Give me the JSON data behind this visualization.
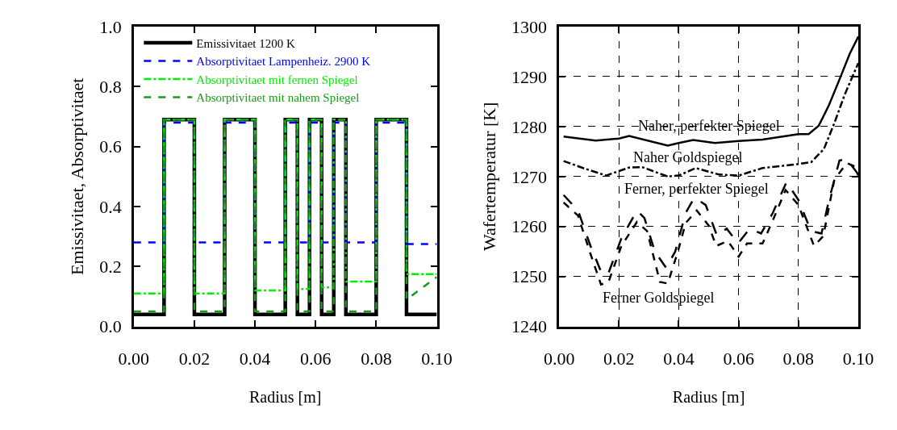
{
  "chart_data": [
    {
      "type": "step",
      "xlabel": "Radius [m]",
      "ylabel": "Emissivitaet, Absorptivitaet",
      "xlim": [
        0,
        0.1
      ],
      "ylim": [
        0,
        1.0
      ],
      "xticks": [
        {
          "value": 0,
          "label": "0.00"
        },
        {
          "value": 0.02,
          "label": "0.02"
        },
        {
          "value": 0.04,
          "label": "0.04"
        },
        {
          "value": 0.06,
          "label": "0.06"
        },
        {
          "value": 0.08,
          "label": "0.08"
        },
        {
          "value": 0.1,
          "label": "0.10"
        }
      ],
      "yticks": [
        {
          "value": 0,
          "label": "0.0"
        },
        {
          "value": 0.2,
          "label": "0.2"
        },
        {
          "value": 0.4,
          "label": "0.4"
        },
        {
          "value": 0.6,
          "label": "0.6"
        },
        {
          "value": 0.8,
          "label": "0.8"
        },
        {
          "value": 1.0,
          "label": "1.0"
        }
      ],
      "grid": false,
      "legend": "top left",
      "marker": "none",
      "x": [
        0,
        0.01,
        0.02,
        0.03,
        0.04,
        0.05,
        0.054,
        0.058,
        0.062,
        0.066,
        0.07,
        0.08,
        0.09,
        0.1
      ],
      "series": [
        {
          "name": "Emissivitaet 1200 K",
          "color": "#000000",
          "line_style": "solid",
          "values": [
            0.04,
            0.69,
            0.04,
            0.69,
            0.04,
            0.69,
            0.04,
            0.69,
            0.04,
            0.69,
            0.04,
            0.69,
            0.04,
            0.04
          ]
        },
        {
          "name": "Absorptivitaet Lampenheiz. 2900 K",
          "color": "#0000ff",
          "line_style": "dashed",
          "values": [
            0.28,
            0.68,
            0.28,
            0.68,
            0.28,
            0.68,
            0.28,
            0.68,
            0.28,
            0.68,
            0.28,
            0.68,
            0.275,
            0.275
          ]
        },
        {
          "name": "Absorptivitaet mit fernen Spiegel",
          "color": "#00ee00",
          "line_style": "dashdot",
          "values": [
            0.11,
            0.69,
            0.11,
            0.69,
            0.12,
            0.69,
            0.125,
            0.69,
            0.13,
            0.69,
            0.15,
            0.69,
            0.175,
            0.175
          ]
        },
        {
          "name": "Absorptivitaet mit nahem Spiegel",
          "color": "#1a991a",
          "line_style": "dashed",
          "type": "line",
          "x": [
            0,
            0.01,
            0.01,
            0.02,
            0.02,
            0.03,
            0.03,
            0.04,
            0.04,
            0.05,
            0.05,
            0.054,
            0.054,
            0.058,
            0.058,
            0.062,
            0.062,
            0.066,
            0.066,
            0.07,
            0.07,
            0.08,
            0.08,
            0.09,
            0.09,
            0.1
          ],
          "values": [
            0.05,
            0.05,
            0.69,
            0.69,
            0.05,
            0.05,
            0.69,
            0.69,
            0.05,
            0.05,
            0.69,
            0.69,
            0.05,
            0.05,
            0.69,
            0.69,
            0.05,
            0.05,
            0.69,
            0.69,
            0.05,
            0.05,
            0.69,
            0.69,
            0.09,
            0.165
          ]
        }
      ]
    },
    {
      "type": "line",
      "xlabel": "Radius [m]",
      "ylabel": "Wafertemperatur [K]",
      "xlim": [
        0,
        0.1
      ],
      "ylim": [
        1240,
        1300
      ],
      "xticks": [
        {
          "value": 0,
          "label": "0.00"
        },
        {
          "value": 0.02,
          "label": "0.02"
        },
        {
          "value": 0.04,
          "label": "0.04"
        },
        {
          "value": 0.06,
          "label": "0.06"
        },
        {
          "value": 0.08,
          "label": "0.08"
        },
        {
          "value": 0.1,
          "label": "0.10"
        }
      ],
      "yticks": [
        1240,
        1250,
        1260,
        1270,
        1280,
        1290,
        1300
      ],
      "grid": true,
      "marker": "none",
      "series": [
        {
          "name": "Naher, perfekter Spiegel",
          "color": "#000000",
          "line_style": "solid",
          "x": [
            0.0015,
            0.0122,
            0.02,
            0.0234,
            0.0363,
            0.04,
            0.0448,
            0.0521,
            0.06,
            0.068,
            0.08,
            0.0834,
            0.0868,
            0.0902,
            0.0937,
            0.0971,
            0.1
          ],
          "values": [
            1278.0,
            1277.2,
            1277.6,
            1278.1,
            1276.2,
            1276.7,
            1277.3,
            1276.7,
            1277.1,
            1277.4,
            1278.5,
            1278.5,
            1280.2,
            1284.3,
            1289.4,
            1294.5,
            1298.0
          ]
        },
        {
          "name": "Naher Goldspiegel",
          "color": "#000000",
          "line_style": "dashdot",
          "x": [
            0.0015,
            0.008,
            0.0157,
            0.0234,
            0.0277,
            0.0363,
            0.04,
            0.0457,
            0.0534,
            0.06,
            0.068,
            0.08,
            0.0843,
            0.0885,
            0.092,
            0.0954,
            0.1
          ],
          "values": [
            1273.1,
            1271.7,
            1270.2,
            1271.8,
            1271.9,
            1270.0,
            1270.2,
            1271.7,
            1270.4,
            1270.2,
            1271.7,
            1272.5,
            1272.9,
            1275.5,
            1280.7,
            1286.3,
            1292.7
          ]
        },
        {
          "name": "Ferner, perfekter Spiegel",
          "color": "#000000",
          "line_style": "longdash",
          "x": [
            0.0015,
            0.0063,
            0.0105,
            0.0144,
            0.0165,
            0.0208,
            0.026,
            0.0285,
            0.032,
            0.0358,
            0.0388,
            0.0423,
            0.0452,
            0.049,
            0.0528,
            0.056,
            0.0598,
            0.0637,
            0.0675,
            0.0714,
            0.076,
            0.08,
            0.0842,
            0.0877,
            0.0902,
            0.0937,
            0.0962,
            0.1
          ],
          "values": [
            1266.3,
            1263.2,
            1256.1,
            1250.4,
            1250.7,
            1257.6,
            1263.2,
            1261.7,
            1255.0,
            1251.7,
            1255.0,
            1262.7,
            1265.8,
            1264.3,
            1258.1,
            1259.6,
            1256.6,
            1259.6,
            1258.6,
            1262.7,
            1268.9,
            1265.3,
            1259.1,
            1258.6,
            1265.3,
            1273.2,
            1273.5,
            1270.4
          ]
        },
        {
          "name": "Ferner Goldspiegel",
          "color": "#000000",
          "line_style": "dashed",
          "x": [
            0.0015,
            0.0063,
            0.0105,
            0.014,
            0.0165,
            0.0208,
            0.026,
            0.0294,
            0.0337,
            0.0363,
            0.0397,
            0.0423,
            0.046,
            0.05,
            0.0525,
            0.0564,
            0.06,
            0.0628,
            0.068,
            0.0714,
            0.0757,
            0.08,
            0.0852,
            0.0883,
            0.092,
            0.0962,
            0.0988,
            0.1
          ],
          "values": [
            1264.8,
            1262.2,
            1254.5,
            1248.4,
            1248.9,
            1256.1,
            1260.9,
            1259.1,
            1248.9,
            1248.6,
            1255.0,
            1260.7,
            1263.2,
            1260.2,
            1256.1,
            1257.1,
            1254.0,
            1256.6,
            1256.6,
            1261.2,
            1267.3,
            1264.3,
            1256.1,
            1258.1,
            1269.4,
            1272.7,
            1272.0,
            1270.2
          ]
        }
      ]
    }
  ]
}
